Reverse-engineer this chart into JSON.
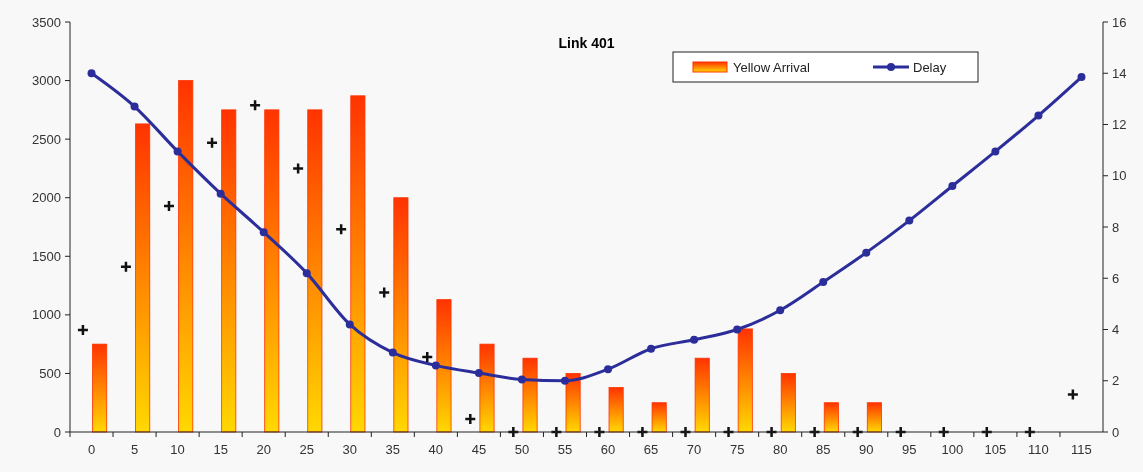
{
  "chart_data": {
    "type": "bar",
    "title": "Link 401",
    "categories": [
      "0",
      "5",
      "10",
      "15",
      "20",
      "25",
      "30",
      "35",
      "40",
      "45",
      "50",
      "55",
      "60",
      "65",
      "70",
      "75",
      "80",
      "85",
      "90",
      "95",
      "100",
      "105",
      "110",
      "115"
    ],
    "series": [
      {
        "name": "Yellow Arrival",
        "color": "#ff3300",
        "values": [
          750,
          2630,
          3000,
          2750,
          2750,
          2750,
          2870,
          2000,
          1130,
          750,
          630,
          500,
          380,
          250,
          630,
          880,
          500,
          250,
          250,
          0,
          0,
          0,
          0,
          0
        ]
      },
      {
        "name": "Delay",
        "type": "line",
        "axis": "y2",
        "color": "#2b2e9a",
        "marker": "circle",
        "values": [
          14.0,
          12.7,
          10.95,
          9.3,
          7.8,
          6.2,
          4.2,
          3.1,
          2.6,
          2.3,
          2.05,
          2.0,
          2.45,
          3.25,
          3.6,
          4.0,
          4.75,
          5.85,
          7.0,
          8.25,
          9.6,
          10.95,
          12.35,
          13.85
        ]
      },
      {
        "type": "scatter",
        "color": "#111111",
        "marker": "cross",
        "values": [
          870,
          1410,
          1930,
          2470,
          2790,
          2250,
          1730,
          1190,
          640,
          110,
          0,
          0,
          0,
          0,
          0,
          0,
          0,
          0,
          0,
          0,
          0,
          0,
          0,
          320
        ]
      }
    ],
    "ylim": [
      0,
      3500
    ],
    "yticks": [
      0,
      500,
      1000,
      1500,
      2000,
      2500,
      3000,
      3500
    ],
    "y2lim": [
      0,
      16
    ],
    "y2ticks": [
      0,
      2,
      4,
      6,
      8,
      10,
      12,
      14,
      16
    ],
    "legend": "top right",
    "grid": false
  }
}
